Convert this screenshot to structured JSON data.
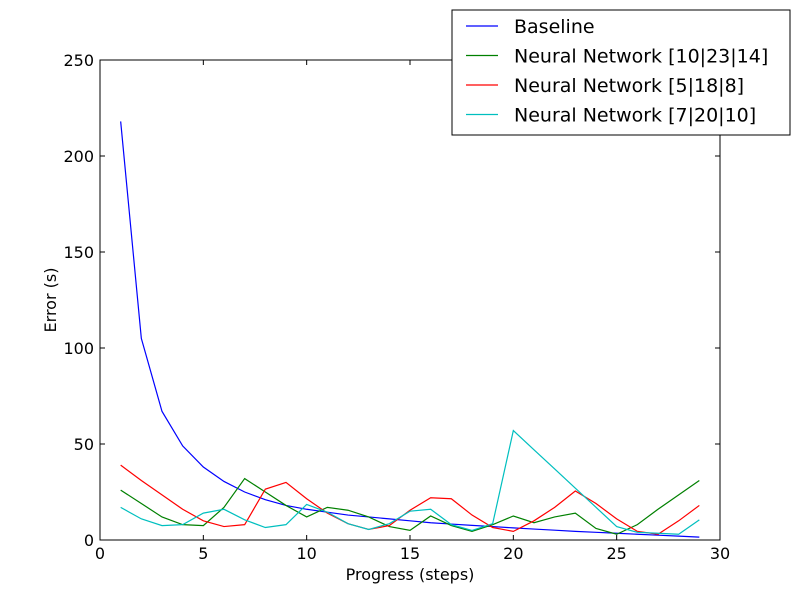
{
  "chart_data": {
    "type": "line",
    "title": "",
    "xlabel": "Progress (steps)",
    "ylabel": "Error (s)",
    "xlim": [
      0,
      30
    ],
    "ylim": [
      0,
      250
    ],
    "xticks": [
      0,
      5,
      10,
      15,
      20,
      25,
      30
    ],
    "yticks": [
      0,
      50,
      100,
      150,
      200,
      250
    ],
    "grid": false,
    "legend_position": "top-right",
    "x": [
      1,
      2,
      3,
      4,
      5,
      6,
      7,
      8,
      9,
      10,
      11,
      12,
      13,
      14,
      15,
      16,
      17,
      18,
      19,
      20,
      21,
      22,
      23,
      24,
      25,
      26,
      27,
      28,
      29
    ],
    "series": [
      {
        "name": "Baseline",
        "color": "#0000ff",
        "values": [
          218,
          105,
          67,
          49,
          38,
          30.5,
          25,
          21,
          18,
          16,
          14.5,
          13,
          12,
          11,
          10,
          9,
          8.3,
          7.6,
          7,
          6.3,
          5.7,
          5.1,
          4.5,
          4,
          3.5,
          3,
          2.5,
          2,
          1.5
        ]
      },
      {
        "name": "Neural Network [10|23|14]",
        "color": "#008000",
        "values": [
          26,
          19,
          12,
          8,
          7.5,
          17,
          32,
          25,
          18,
          12,
          17,
          15.5,
          12,
          7,
          5,
          12.5,
          7.5,
          4.5,
          8,
          12.5,
          9,
          12,
          14,
          6,
          3,
          8,
          16,
          23.5,
          31
        ]
      },
      {
        "name": "Neural Network [5|18|8]",
        "color": "#ff0000",
        "values": [
          39,
          31,
          23.5,
          16,
          10,
          7,
          8,
          26.5,
          30,
          21.5,
          14,
          8.5,
          5.5,
          7.5,
          15.5,
          22,
          21.5,
          13,
          6.5,
          4.5,
          10,
          17,
          25.5,
          19,
          11,
          4.5,
          3,
          10,
          18
        ]
      },
      {
        "name": "Neural Network [7|20|10]",
        "color": "#00bfbf",
        "values": [
          17,
          11,
          7.5,
          8,
          14,
          16,
          10.5,
          6.5,
          8,
          18.5,
          14.5,
          8.5,
          5.5,
          8.5,
          15,
          16,
          8,
          5,
          8.5,
          57,
          47,
          37,
          27,
          17,
          7,
          4,
          3.5,
          3,
          10.5
        ]
      }
    ]
  }
}
